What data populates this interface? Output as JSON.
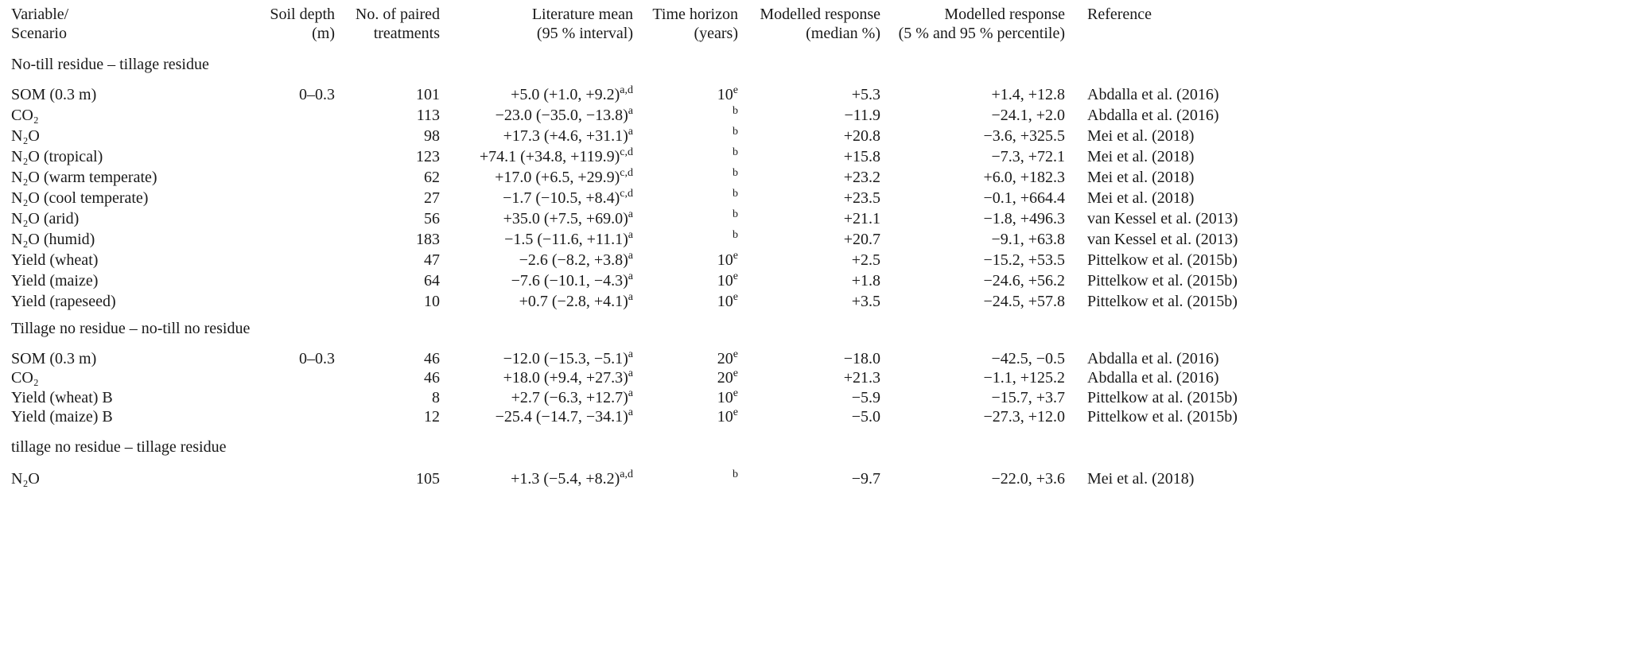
{
  "header": [
    [
      "Variable/",
      "Scenario"
    ],
    [
      "Soil depth",
      "(m)"
    ],
    [
      "No. of paired",
      "treatments"
    ],
    [
      "Literature mean",
      "(95 % interval)"
    ],
    [
      "Time horizon",
      "(years)"
    ],
    [
      "Modelled response",
      "(median %)"
    ],
    [
      "Modelled response",
      "(5 % and 95 % percentile)"
    ],
    [
      "Reference"
    ]
  ],
  "groups": [
    {
      "title": "No-till residue – tillage residue",
      "rows": [
        {
          "variable": "SOM (0.3 m)",
          "depth": "0–0.3",
          "n": 101,
          "mean": "+5.0 (+1.0, +9.2)",
          "mean_note": "a,d",
          "horizon": 10,
          "horizon_note": "e",
          "median": "+5.3",
          "percentile": "+1.4, +12.8",
          "reference": "Abdalla et al. (2016)"
        },
        {
          "variable": "CO₂",
          "n": 113,
          "mean": "−23.0 (−35.0, −13.8)",
          "mean_note": "a",
          "horizon_note": "b",
          "median": "−11.9",
          "percentile": "−24.1, +2.0",
          "reference": "Abdalla et al. (2016)"
        },
        {
          "variable": "N₂O",
          "n": 98,
          "mean": "+17.3 (+4.6, +31.1)",
          "mean_note": "a",
          "horizon_note": "b",
          "median": "+20.8",
          "percentile": "−3.6, +325.5",
          "reference": "Mei et al. (2018)"
        },
        {
          "variable": "N₂O (tropical)",
          "n": 123,
          "mean": "+74.1 (+34.8, +119.9)",
          "mean_note": "c,d",
          "horizon_note": "b",
          "median": "+15.8",
          "percentile": "−7.3, +72.1",
          "reference": "Mei et al. (2018)"
        },
        {
          "variable": "N₂O (warm temperate)",
          "n": 62,
          "mean": "+17.0 (+6.5, +29.9)",
          "mean_note": "c,d",
          "horizon_note": "b",
          "median": "+23.2",
          "percentile": "+6.0, +182.3",
          "reference": "Mei et al. (2018)"
        },
        {
          "variable": "N₂O (cool temperate)",
          "n": 27,
          "mean": "−1.7 (−10.5, +8.4)",
          "mean_note": "c,d",
          "horizon_note": "b",
          "median": "+23.5",
          "percentile": "−0.1, +664.4",
          "reference": "Mei et al. (2018)"
        },
        {
          "variable": "N₂O (arid)",
          "n": 56,
          "mean": "+35.0 (+7.5, +69.0)",
          "mean_note": "a",
          "horizon_note": "b",
          "median": "+21.1",
          "percentile": "−1.8, +496.3",
          "reference": "van Kessel et al. (2013)"
        },
        {
          "variable": "N₂O (humid)",
          "n": 183,
          "mean": "−1.5 (−11.6, +11.1)",
          "mean_note": "a",
          "horizon_note": "b",
          "median": "+20.7",
          "percentile": "−9.1, +63.8",
          "reference": "van Kessel et al. (2013)"
        },
        {
          "variable": "Yield (wheat)",
          "n": 47,
          "mean": "−2.6 (−8.2, +3.8)",
          "mean_note": "a",
          "horizon": 10,
          "horizon_note": "e",
          "median": "+2.5",
          "percentile": "−15.2, +53.5",
          "reference": "Pittelkow et al. (2015b)"
        },
        {
          "variable": "Yield (maize)",
          "n": 64,
          "mean": "−7.6 (−10.1, −4.3)",
          "mean_note": "a",
          "horizon": 10,
          "horizon_note": "e",
          "median": "+1.8",
          "percentile": "−24.6, +56.2",
          "reference": "Pittelkow et al. (2015b)"
        },
        {
          "variable": "Yield (rapeseed)",
          "n": 10,
          "mean": "+0.7 (−2.8, +4.1)",
          "mean_note": "a",
          "horizon": 10,
          "horizon_note": "e",
          "median": "+3.5",
          "percentile": "−24.5, +57.8",
          "reference": "Pittelkow et al. (2015b)"
        }
      ]
    },
    {
      "title": "Tillage no residue – no-till no residue",
      "rows": [
        {
          "variable": "SOM (0.3 m)",
          "depth": "0–0.3",
          "n": 46,
          "mean": "−12.0 (−15.3, −5.1)",
          "mean_note": "a",
          "horizon": 20,
          "horizon_note": "e",
          "median": "−18.0",
          "percentile": "−42.5, −0.5",
          "reference": "Abdalla et al. (2016)"
        },
        {
          "variable": "CO₂",
          "n": 46,
          "mean": "+18.0 (+9.4, +27.3)",
          "mean_note": "a",
          "horizon": 20,
          "horizon_note": "e",
          "median": "+21.3",
          "percentile": "−1.1, +125.2",
          "reference": "Abdalla et al. (2016)"
        },
        {
          "variable": "Yield (wheat) B",
          "n": 8,
          "mean": "+2.7 (−6.3, +12.7)",
          "mean_note": "a",
          "horizon": 10,
          "horizon_note": "e",
          "median": "−5.9",
          "percentile": "−15.7, +3.7",
          "reference": "Pittelkow at al. (2015b)"
        },
        {
          "variable": "Yield (maize) B",
          "n": 12,
          "mean": "−25.4 (−14.7, −34.1)",
          "mean_note": "a",
          "horizon": 10,
          "horizon_note": "e",
          "median": "−5.0",
          "percentile": "−27.3, +12.0",
          "reference": "Pittelkow et al. (2015b)"
        }
      ]
    },
    {
      "title": "tillage no residue – tillage residue",
      "rows": [
        {
          "variable": "N₂O",
          "n": 105,
          "mean": "+1.3 (−5.4, +8.2)",
          "mean_note": "a,d",
          "horizon_note": "b",
          "median": "−9.7",
          "percentile": "−22.0, +3.6",
          "reference": "Mei et al. (2018)"
        }
      ]
    }
  ]
}
